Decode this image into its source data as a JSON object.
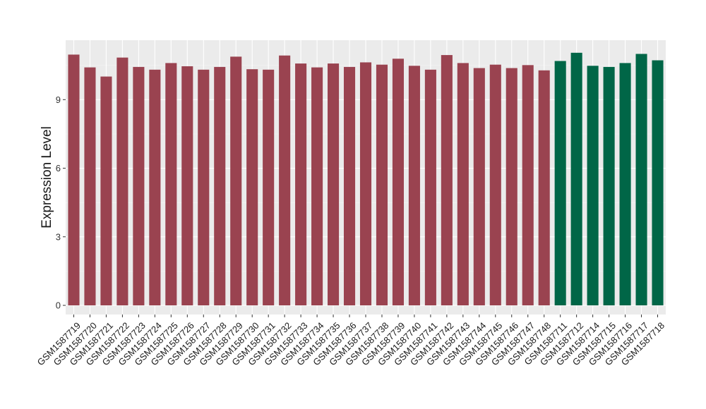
{
  "chart_data": {
    "type": "bar",
    "title": "",
    "xlabel": "",
    "ylabel": "Expression Level",
    "ylim": [
      -0.4,
      11.6
    ],
    "yticks": [
      0,
      3,
      6,
      9
    ],
    "grid": true,
    "legend": "none",
    "categories": [
      "GSM1587719",
      "GSM1587720",
      "GSM1587721",
      "GSM1587722",
      "GSM1587723",
      "GSM1587724",
      "GSM1587725",
      "GSM1587726",
      "GSM1587727",
      "GSM1587728",
      "GSM1587729",
      "GSM1587730",
      "GSM1587731",
      "GSM1587732",
      "GSM1587733",
      "GSM1587734",
      "GSM1587735",
      "GSM1587736",
      "GSM1587737",
      "GSM1587738",
      "GSM1587739",
      "GSM1587740",
      "GSM1587741",
      "GSM1587742",
      "GSM1587743",
      "GSM1587744",
      "GSM1587745",
      "GSM1587746",
      "GSM1587747",
      "GSM1587748",
      "GSM1587711",
      "GSM1587712",
      "GSM1587714",
      "GSM1587715",
      "GSM1587716",
      "GSM1587717",
      "GSM1587718"
    ],
    "values": [
      10.97,
      10.41,
      10.01,
      10.84,
      10.43,
      10.31,
      10.6,
      10.46,
      10.31,
      10.43,
      10.88,
      10.33,
      10.31,
      10.93,
      10.58,
      10.41,
      10.58,
      10.43,
      10.63,
      10.53,
      10.79,
      10.48,
      10.31,
      10.95,
      10.6,
      10.38,
      10.53,
      10.38,
      10.51,
      10.28,
      10.69,
      11.05,
      10.48,
      10.43,
      10.6,
      11.0,
      10.72
    ],
    "groups": [
      "a",
      "a",
      "a",
      "a",
      "a",
      "a",
      "a",
      "a",
      "a",
      "a",
      "a",
      "a",
      "a",
      "a",
      "a",
      "a",
      "a",
      "a",
      "a",
      "a",
      "a",
      "a",
      "a",
      "a",
      "a",
      "a",
      "a",
      "a",
      "a",
      "a",
      "b",
      "b",
      "b",
      "b",
      "b",
      "b",
      "b"
    ],
    "colors": {
      "a": "#9a4350",
      "b": "#006647",
      "panel": "#ebebeb",
      "grid_major": "#ffffff",
      "grid_minor": "#f4f4f4",
      "text": "#1a1a1a",
      "tick": "#333333"
    }
  }
}
